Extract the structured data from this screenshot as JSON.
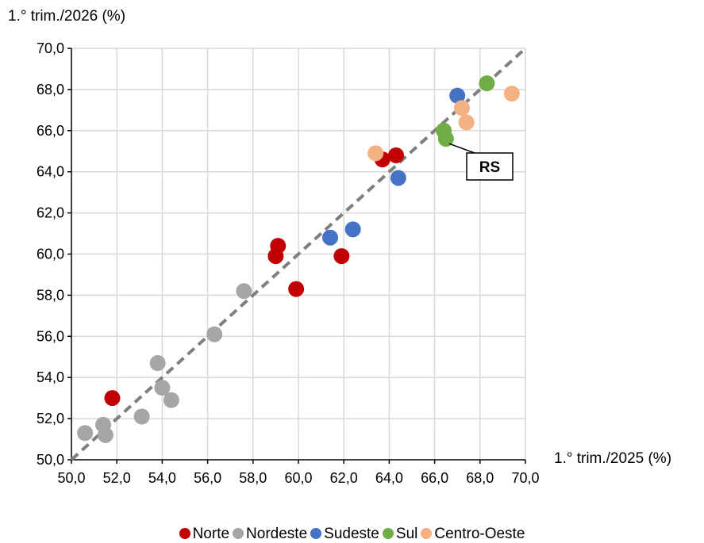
{
  "chart_data": {
    "type": "scatter",
    "xlabel": "1.° trim./2025 (%)",
    "ylabel": "1.° trim./2026 (%)",
    "xlim": [
      50,
      70
    ],
    "ylim": [
      50,
      70
    ],
    "tick_step": 2,
    "x_tick_labels": [
      "50,0",
      "52,0",
      "54,0",
      "56,0",
      "58,0",
      "60,0",
      "62,0",
      "64,0",
      "66,0",
      "68,0",
      "70,0"
    ],
    "y_tick_labels": [
      "50,0",
      "52,0",
      "54,0",
      "56,0",
      "58,0",
      "60,0",
      "62,0",
      "64,0",
      "66,0",
      "68,0",
      "70,0"
    ],
    "grid": true,
    "legend_position": "bottom",
    "reference_line": {
      "style": "dashed",
      "color": "#7f7f7f",
      "points": [
        [
          50,
          50
        ],
        [
          70,
          70
        ]
      ]
    },
    "annotation": {
      "text": "RS",
      "x": 66.5,
      "y": 65.6
    },
    "series": [
      {
        "name": "Norte",
        "color": "#c00000",
        "points": [
          [
            51.8,
            53.0
          ],
          [
            59.0,
            59.9
          ],
          [
            59.1,
            60.4
          ],
          [
            59.9,
            58.3
          ],
          [
            61.9,
            59.9
          ],
          [
            63.7,
            64.6
          ],
          [
            64.3,
            64.8
          ]
        ]
      },
      {
        "name": "Nordeste",
        "color": "#a6a6a6",
        "points": [
          [
            50.6,
            51.3
          ],
          [
            51.4,
            51.7
          ],
          [
            51.5,
            51.2
          ],
          [
            53.1,
            52.1
          ],
          [
            53.8,
            54.7
          ],
          [
            54.0,
            53.5
          ],
          [
            54.4,
            52.9
          ],
          [
            56.3,
            56.1
          ],
          [
            57.6,
            58.2
          ]
        ]
      },
      {
        "name": "Sudeste",
        "color": "#4472c4",
        "points": [
          [
            61.4,
            60.8
          ],
          [
            62.4,
            61.2
          ],
          [
            64.4,
            63.7
          ],
          [
            67.0,
            67.7
          ]
        ]
      },
      {
        "name": "Sul",
        "color": "#70ad47",
        "points": [
          [
            66.4,
            66.0
          ],
          [
            66.5,
            65.6
          ],
          [
            68.3,
            68.3
          ]
        ]
      },
      {
        "name": "Centro-Oeste",
        "color": "#f4b183",
        "points": [
          [
            63.4,
            64.9
          ],
          [
            67.2,
            67.1
          ],
          [
            67.4,
            66.4
          ],
          [
            69.4,
            67.8
          ]
        ]
      }
    ]
  }
}
